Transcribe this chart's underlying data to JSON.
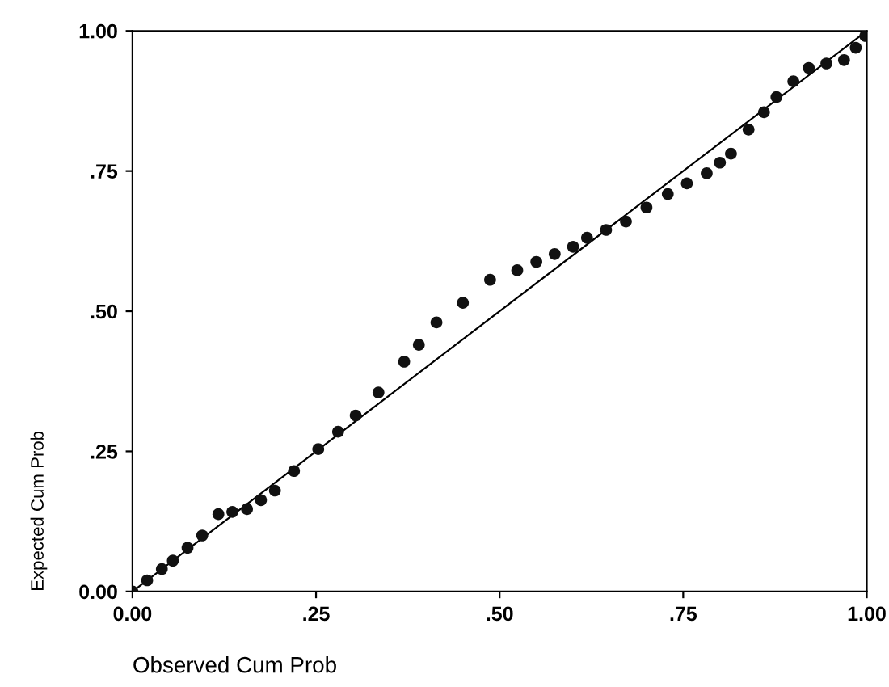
{
  "chart_data": {
    "type": "scatter",
    "xlabel": "Observed Cum Prob",
    "ylabel": "Expected Cum Prob",
    "xlim": [
      0,
      1
    ],
    "ylim": [
      0,
      1
    ],
    "xticks": [
      {
        "value": 0,
        "label": "0.00"
      },
      {
        "value": 0.25,
        "label": ".25"
      },
      {
        "value": 0.5,
        "label": ".50"
      },
      {
        "value": 0.75,
        "label": ".75"
      },
      {
        "value": 1,
        "label": "1.00"
      }
    ],
    "yticks": [
      {
        "value": 0,
        "label": "0.00"
      },
      {
        "value": 0.25,
        "label": ".25"
      },
      {
        "value": 0.5,
        "label": ".50"
      },
      {
        "value": 0.75,
        "label": ".75"
      },
      {
        "value": 1,
        "label": "1.00"
      }
    ],
    "grid": false,
    "legend": false,
    "series": [
      {
        "type": "line",
        "color": "#000000",
        "x": [
          0,
          1
        ],
        "values": [
          0,
          1
        ],
        "marker": "none",
        "line_style": "solid"
      },
      {
        "color": "#111111",
        "marker": "circle",
        "x": [
          0,
          0.02,
          0.04,
          0.055,
          0.075,
          0.095,
          0.117,
          0.136,
          0.156,
          0.175,
          0.194,
          0.22,
          0.253,
          0.28,
          0.304,
          0.335,
          0.37,
          0.39,
          0.414,
          0.45,
          0.487,
          0.524,
          0.55,
          0.575,
          0.6,
          0.619,
          0.645,
          0.672,
          0.7,
          0.729,
          0.755,
          0.782,
          0.8,
          0.815,
          0.839,
          0.86,
          0.877,
          0.9,
          0.921,
          0.945,
          0.969,
          0.985,
          0.998
        ],
        "values": [
          0,
          0.02,
          0.04,
          0.055,
          0.078,
          0.1,
          0.138,
          0.142,
          0.147,
          0.163,
          0.18,
          0.215,
          0.254,
          0.285,
          0.314,
          0.355,
          0.41,
          0.44,
          0.48,
          0.515,
          0.556,
          0.573,
          0.588,
          0.602,
          0.615,
          0.631,
          0.645,
          0.66,
          0.685,
          0.709,
          0.728,
          0.746,
          0.765,
          0.781,
          0.824,
          0.855,
          0.882,
          0.91,
          0.934,
          0.942,
          0.948,
          0.97,
          0.991
        ]
      }
    ]
  }
}
